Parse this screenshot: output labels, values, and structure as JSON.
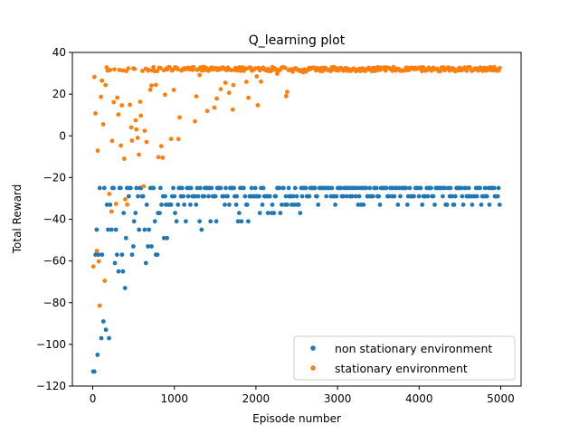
{
  "chart_data": {
    "type": "scatter",
    "title": "Q_learning plot",
    "xlabel": "Episode number",
    "ylabel": "Total Reward",
    "xlim": [
      -250,
      5250
    ],
    "ylim": [
      -120,
      40
    ],
    "xticks": [
      "0",
      "1000",
      "2000",
      "3000",
      "4000",
      "5000"
    ],
    "yticks": [
      "−120",
      "−100",
      "−80",
      "−60",
      "−40",
      "−20",
      "0",
      "20",
      "40"
    ],
    "xtick_values": [
      0,
      1000,
      2000,
      3000,
      4000,
      5000
    ],
    "ytick_values": [
      -120,
      -100,
      -80,
      -60,
      -40,
      -20,
      0,
      20,
      40
    ],
    "grid": false,
    "legend_position": "lower-right",
    "n_episodes": 5000,
    "series": [
      {
        "name": "non stationary environment",
        "color": "#1f77b4",
        "plateau_levels": [
          -25,
          -29,
          -33
        ],
        "early_range": [
          -113,
          -25
        ],
        "converged_by_episode": 2600
      },
      {
        "name": "stationary environment",
        "color": "#ff7f0e",
        "plateau_levels": [
          31,
          32,
          33
        ],
        "early_range": [
          -95,
          33
        ],
        "converged_by_episode": 2600
      }
    ]
  }
}
